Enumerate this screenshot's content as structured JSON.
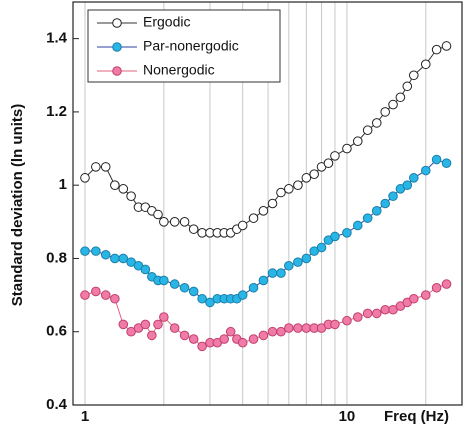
{
  "chart_data": {
    "type": "line",
    "x_label": "Freq (Hz)",
    "y_label": "Standard deviation (ln units)",
    "x": [
      1,
      1.1,
      1.2,
      1.3,
      1.4,
      1.5,
      1.6,
      1.7,
      1.8,
      1.9,
      2,
      2.2,
      2.4,
      2.6,
      2.8,
      3,
      3.2,
      3.4,
      3.6,
      3.8,
      4,
      4.4,
      4.8,
      5.2,
      5.6,
      6,
      6.5,
      7,
      7.5,
      8,
      8.5,
      9,
      10,
      11,
      12,
      13,
      14,
      15,
      16,
      17,
      18,
      20,
      22,
      24
    ],
    "series": [
      {
        "name": "Ergodic",
        "color": "#333333",
        "marker_fill": "#ffffff",
        "marker_stroke": "#222222",
        "values": [
          1.02,
          1.05,
          1.05,
          1.0,
          0.99,
          0.97,
          0.94,
          0.94,
          0.93,
          0.92,
          0.9,
          0.9,
          0.9,
          0.88,
          0.87,
          0.87,
          0.87,
          0.87,
          0.87,
          0.88,
          0.89,
          0.91,
          0.93,
          0.95,
          0.98,
          0.99,
          1.0,
          1.02,
          1.03,
          1.05,
          1.06,
          1.08,
          1.1,
          1.12,
          1.15,
          1.17,
          1.2,
          1.22,
          1.24,
          1.27,
          1.3,
          1.33,
          1.37,
          1.38
        ]
      },
      {
        "name": "Par-nonergodic",
        "color": "#2b3fa0",
        "marker_fill": "#29b6e6",
        "marker_stroke": "#1a7fa8",
        "values": [
          0.82,
          0.82,
          0.81,
          0.8,
          0.8,
          0.79,
          0.78,
          0.77,
          0.75,
          0.74,
          0.74,
          0.73,
          0.72,
          0.71,
          0.69,
          0.68,
          0.69,
          0.69,
          0.69,
          0.69,
          0.7,
          0.72,
          0.74,
          0.76,
          0.76,
          0.78,
          0.79,
          0.8,
          0.82,
          0.83,
          0.85,
          0.86,
          0.87,
          0.89,
          0.91,
          0.93,
          0.95,
          0.97,
          0.99,
          1.0,
          1.02,
          1.04,
          1.07,
          1.06
        ]
      },
      {
        "name": "Nonergodic",
        "color": "#e0607e",
        "marker_fill": "#f07aa8",
        "marker_stroke": "#c0406a",
        "values": [
          0.7,
          0.71,
          0.7,
          0.69,
          0.62,
          0.6,
          0.61,
          0.62,
          0.59,
          0.62,
          0.64,
          0.61,
          0.59,
          0.58,
          0.56,
          0.57,
          0.57,
          0.58,
          0.6,
          0.58,
          0.57,
          0.58,
          0.59,
          0.6,
          0.6,
          0.61,
          0.61,
          0.61,
          0.61,
          0.61,
          0.62,
          0.62,
          0.63,
          0.64,
          0.65,
          0.65,
          0.66,
          0.66,
          0.67,
          0.68,
          0.69,
          0.7,
          0.72,
          0.73
        ]
      }
    ],
    "xlog": true,
    "xlim": [
      0.9,
      27.5
    ],
    "xticks": [
      1,
      10
    ],
    "xminor": [
      2,
      3,
      4,
      5,
      6,
      7,
      8,
      9,
      20
    ],
    "ylim": [
      0.4,
      1.5
    ],
    "yticks": [
      0.4,
      0.6,
      0.8,
      1,
      1.2,
      1.4
    ],
    "grid": true,
    "legend": "upper left"
  }
}
